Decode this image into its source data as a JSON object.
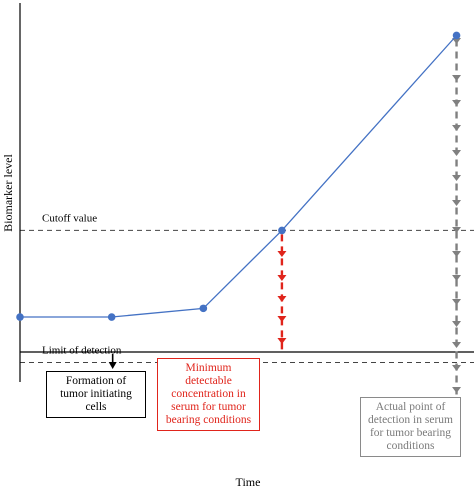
{
  "chart_data": {
    "type": "line",
    "xlabel": "Time",
    "ylabel": "Biomarker level",
    "series": [
      {
        "color": "#4472c4",
        "points": [
          {
            "x": 0,
            "y": 1.0
          },
          {
            "x": 21,
            "y": 1.0
          },
          {
            "x": 42,
            "y": 1.4
          },
          {
            "x": 60,
            "y": 5.0
          },
          {
            "x": 100,
            "y": 14.0
          }
        ]
      }
    ],
    "xlim": [
      0,
      104
    ],
    "ylim": [
      -2,
      15.5
    ],
    "reference_lines": [
      {
        "label": "Cutoff value",
        "y": 5.0
      },
      {
        "label": "Limit of detection",
        "y": -1.1
      }
    ],
    "annotations": [
      {
        "text": "Formation of tumor initiating cells",
        "x": 21,
        "color": "#000000"
      },
      {
        "text": "Minimum detectable concentration in serum for tumor bearing conditions",
        "x": 60,
        "color": "#e0241b"
      },
      {
        "text": "Actual point of detection in serum for tumor bearing conditions",
        "x": 100,
        "color": "#7a7a7a"
      }
    ],
    "grid": false,
    "legend": "none"
  }
}
